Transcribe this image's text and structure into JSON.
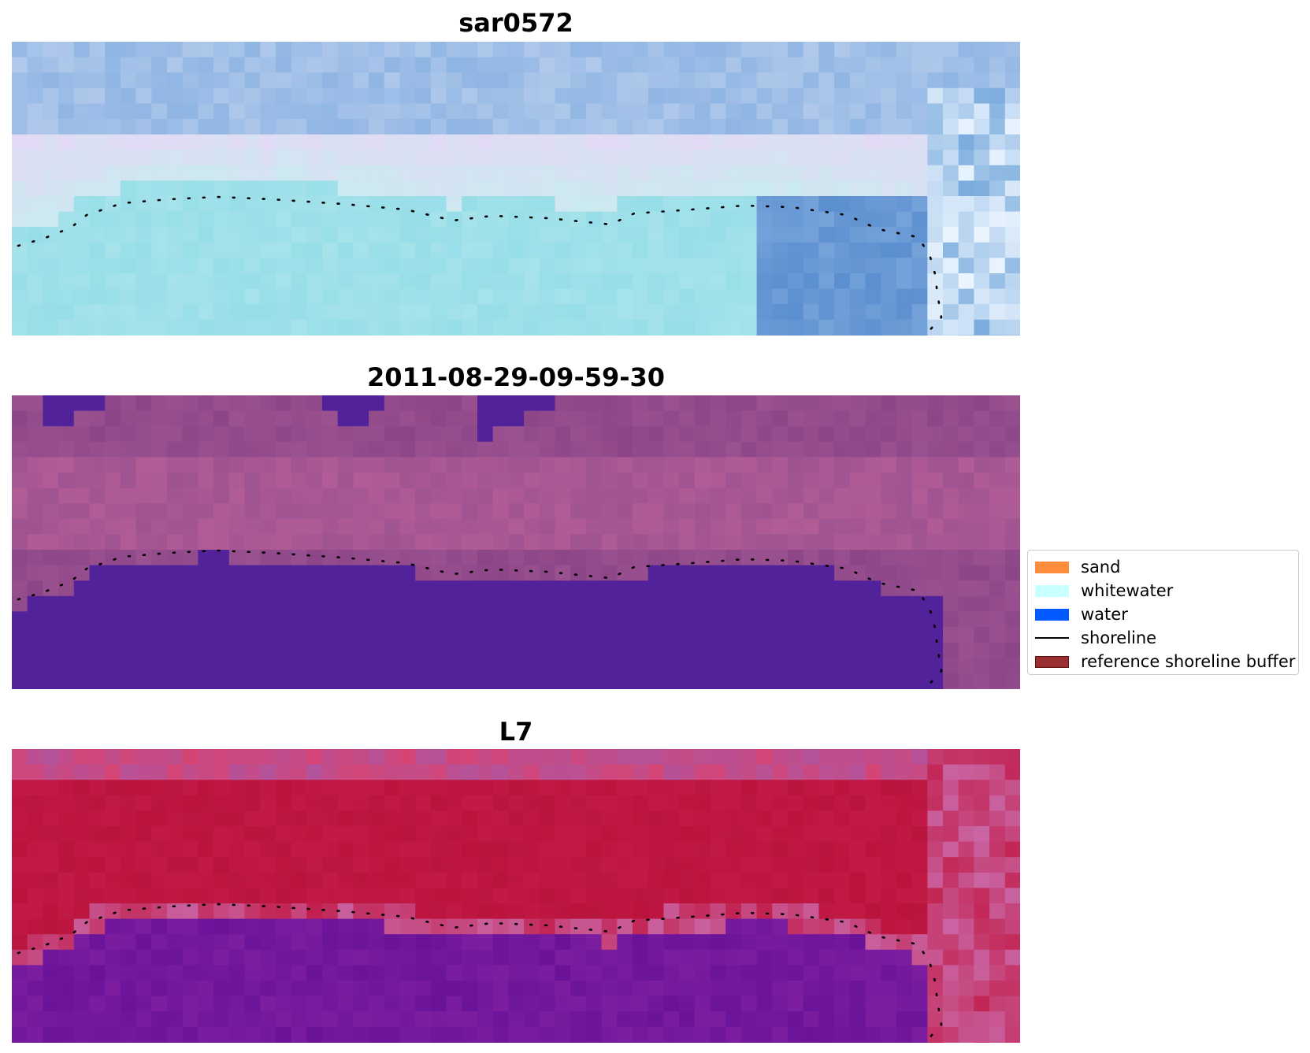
{
  "panels": [
    {
      "title": "sar0572",
      "kind": "rgb-composite"
    },
    {
      "title": "2011-08-29-09-59-30",
      "kind": "classified"
    },
    {
      "title": "L7",
      "kind": "index"
    }
  ],
  "legend": {
    "items": [
      {
        "label": "sand",
        "color": "#ff8c3c",
        "type": "patch"
      },
      {
        "label": "whitewater",
        "color": "#c8ffff",
        "type": "patch"
      },
      {
        "label": "water",
        "color": "#005aff",
        "type": "patch"
      },
      {
        "label": "shoreline",
        "color": "#000000",
        "type": "line"
      },
      {
        "label": "reference shoreline buffer",
        "color": "#9a2f32",
        "edge": "#5a0f12",
        "type": "patch"
      }
    ]
  },
  "colors": {
    "water_mask": "#52229a",
    "sar_sky": "#8fb5e3",
    "sar_shore": "#a6e2ea",
    "sar_deep": "#5c8fd0",
    "class_bg": "#9a5190",
    "index_red": "#c11a46",
    "index_purple": "#6a1399"
  }
}
